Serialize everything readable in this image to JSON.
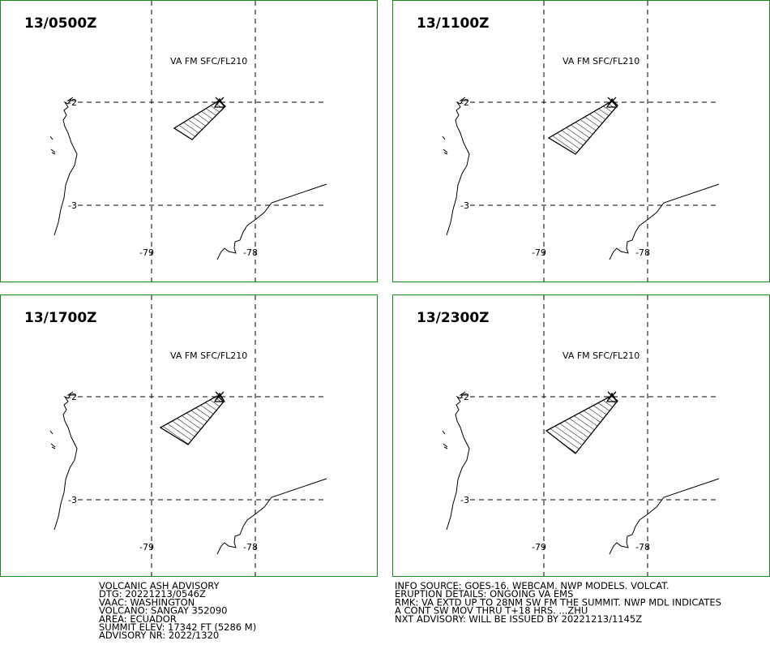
{
  "panels": [
    {
      "time": "13/0500Z",
      "level": "VA FM SFC/FL210",
      "lat_labels": [
        "-2",
        "-3"
      ],
      "lon_labels": [
        "-79",
        "-78"
      ]
    },
    {
      "time": "13/1100Z",
      "level": "VA FM SFC/FL210",
      "lat_labels": [
        "-2",
        "-3"
      ],
      "lon_labels": [
        "-79",
        "-78"
      ]
    },
    {
      "time": "13/1700Z",
      "level": "VA FM SFC/FL210",
      "lat_labels": [
        "-2",
        "-3"
      ],
      "lon_labels": [
        "-79",
        "-78"
      ]
    },
    {
      "time": "13/2300Z",
      "level": "VA FM SFC/FL210",
      "lat_labels": [
        "-2",
        "-3"
      ],
      "lon_labels": [
        "-79",
        "-78"
      ]
    }
  ],
  "advisory": {
    "left": [
      "VOLCANIC ASH ADVISORY",
      "DTG: 20221213/0546Z",
      "VAAC: WASHINGTON",
      "VOLCANO: SANGAY 352090",
      "AREA: ECUADOR",
      "SUMMIT ELEV: 17342 FT (5286 M)",
      "ADVISORY NR: 2022/1320"
    ],
    "right": [
      "INFO SOURCE: GOES-16. WEBCAM. NWP MODELS. VOLCAT.",
      "ERUPTION DETAILS: ONGOING VA EMS",
      "RMK: VA EXTD UP TO 28NM SW FM THE SUMMIT. NWP MDL INDICATES",
      "A CONT SW MOV THRU T+18 HRS. ...ZHU",
      "NXT ADVISORY: WILL BE ISSUED BY 20221213/1145Z"
    ]
  }
}
